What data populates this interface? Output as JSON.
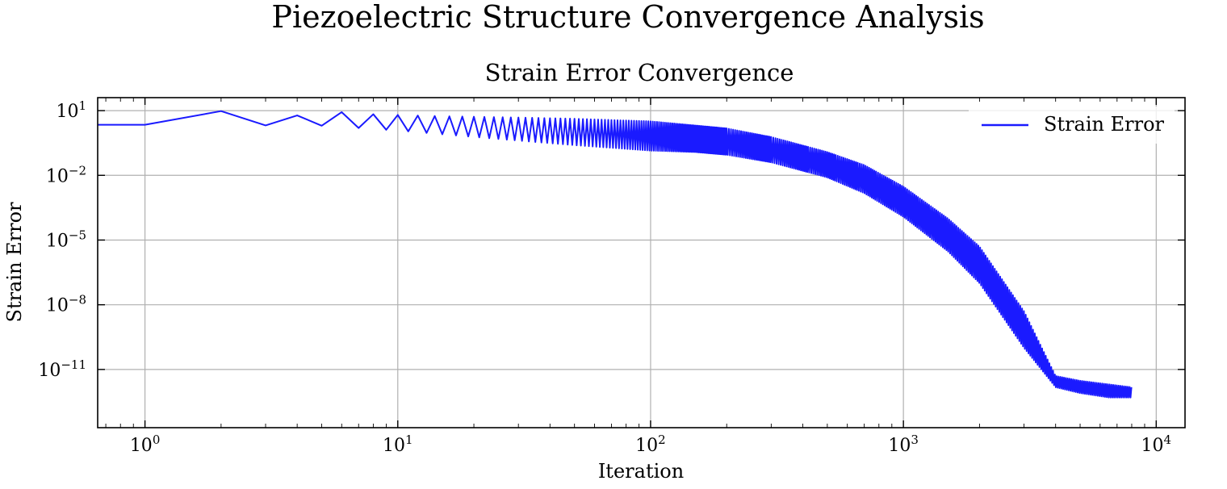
{
  "figure": {
    "suptitle": "Piezoelectric Structure Convergence Analysis"
  },
  "chart_data": {
    "type": "line",
    "title": "Strain Error Convergence",
    "xlabel": "Iteration",
    "ylabel": "Strain Error",
    "xscale": "log",
    "yscale": "log",
    "xlim": [
      0.65,
      13000
    ],
    "ylim": [
      2e-14,
      40
    ],
    "xticks": [
      1,
      10,
      100,
      1000,
      10000
    ],
    "xtick_labels": [
      {
        "base": "10",
        "exp": "0"
      },
      {
        "base": "10",
        "exp": "1"
      },
      {
        "base": "10",
        "exp": "2"
      },
      {
        "base": "10",
        "exp": "3"
      },
      {
        "base": "10",
        "exp": "4"
      }
    ],
    "yticks": [
      10,
      0.01,
      1e-05,
      1e-08,
      1e-11
    ],
    "ytick_labels": [
      {
        "base": "10",
        "exp": "1"
      },
      {
        "base": "10",
        "exp": "−2"
      },
      {
        "base": "10",
        "exp": "−5"
      },
      {
        "base": "10",
        "exp": "−8"
      },
      {
        "base": "10",
        "exp": "−11"
      }
    ],
    "grid": true,
    "legend_position": "top-right",
    "series": [
      {
        "name": "Strain Error",
        "color": "#1a1aff",
        "band_description": "oscillating error between envelope_upper and envelope_lower",
        "envelope_upper": [
          [
            0.65,
            2.2
          ],
          [
            1,
            2.2
          ],
          [
            2,
            9.5
          ],
          [
            3,
            9.2
          ],
          [
            4,
            6
          ],
          [
            6,
            8.5
          ],
          [
            8,
            6.8
          ],
          [
            10,
            6.3
          ],
          [
            15,
            5.5
          ],
          [
            20,
            5.2
          ],
          [
            30,
            4.8
          ],
          [
            50,
            4.2
          ],
          [
            100,
            3.2
          ],
          [
            200,
            1.5
          ],
          [
            300,
            0.6
          ],
          [
            500,
            0.12
          ],
          [
            700,
            0.03
          ],
          [
            1000,
            0.003
          ],
          [
            1500,
            0.0001
          ],
          [
            2000,
            5e-06
          ],
          [
            3000,
            5e-09
          ],
          [
            4000,
            5e-12
          ],
          [
            5000,
            3e-12
          ],
          [
            8000,
            1.5e-12
          ]
        ],
        "envelope_lower": [
          [
            0.65,
            2.2
          ],
          [
            1,
            2.2
          ],
          [
            5,
            2.0
          ],
          [
            10,
            1.2
          ],
          [
            20,
            0.6
          ],
          [
            50,
            0.25
          ],
          [
            100,
            0.14
          ],
          [
            150,
            0.12
          ],
          [
            200,
            0.09
          ],
          [
            300,
            0.04
          ],
          [
            500,
            0.008
          ],
          [
            700,
            0.0015
          ],
          [
            1000,
            0.00012
          ],
          [
            1500,
            3e-06
          ],
          [
            2000,
            1e-07
          ],
          [
            3000,
            1e-10
          ],
          [
            4000,
            1.5e-12
          ],
          [
            5000,
            8e-13
          ],
          [
            6500,
            5e-13
          ],
          [
            8000,
            5e-13
          ]
        ]
      }
    ]
  }
}
